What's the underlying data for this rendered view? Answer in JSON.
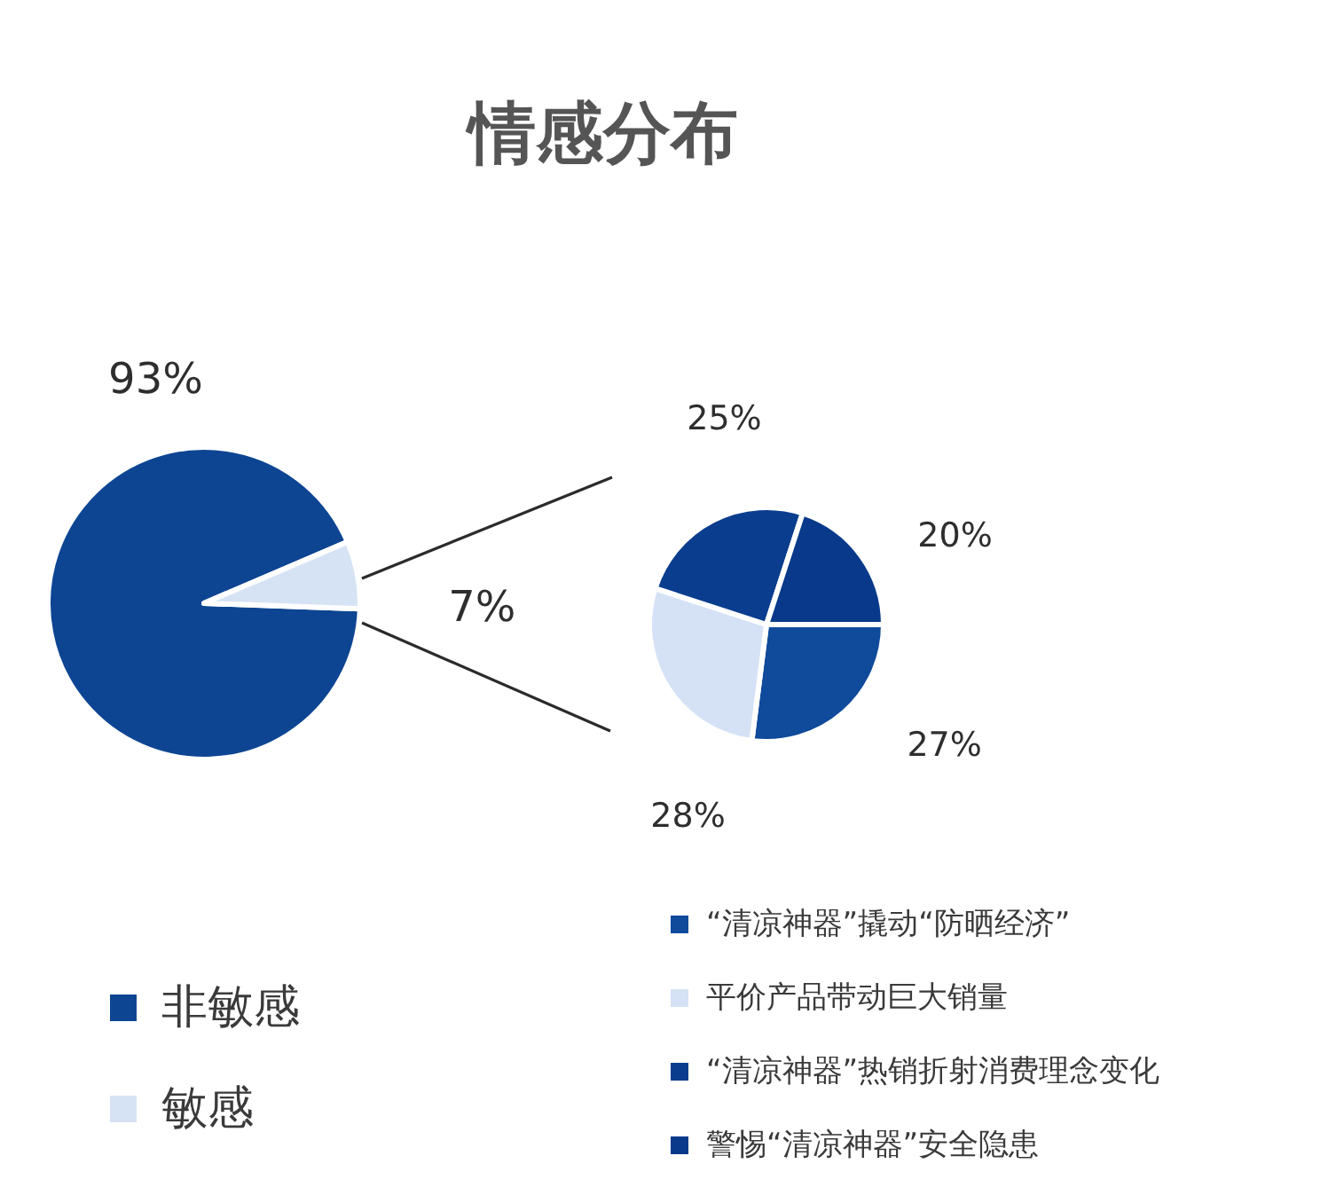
{
  "chart_data": [
    {
      "type": "pie",
      "title": "情感分布",
      "categories": [
        "非敏感",
        "敏感"
      ],
      "values": [
        93,
        7
      ],
      "colors": [
        "#0d4593",
        "#d6e3f5"
      ],
      "value_labels": [
        "93%",
        "7%"
      ],
      "legend": "bottom left"
    },
    {
      "type": "pie",
      "categories": [
        "“清凉神器”撬动“防晒经济”",
        "平价产品带动巨大销量",
        "“清凉神器”热销折射消费理念变化",
        "警惕“清凉神器”安全隐患"
      ],
      "values": [
        27,
        28,
        25,
        20
      ],
      "colors": [
        "#0f4a9b",
        "#d5e2f6",
        "#0a3d8e",
        "#08398a"
      ],
      "value_labels": [
        "27%",
        "28%",
        "25%",
        "20%"
      ],
      "legend": "bottom"
    }
  ]
}
